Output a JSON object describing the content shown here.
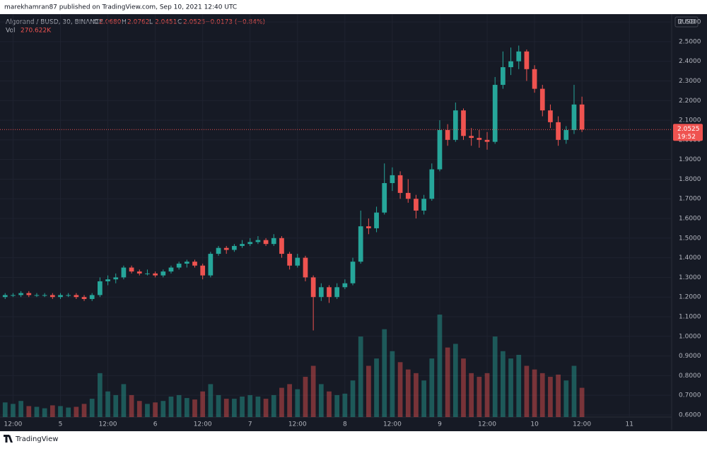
{
  "header": {
    "publisher": "marekhamran87 published on TradingView.com, Sep 10, 2021 12:40 UTC"
  },
  "footer": {
    "brand": "TradingView"
  },
  "chart_data": {
    "type": "candlestick",
    "symbol": "Algorand / BUSD, 30, BINANCE",
    "ohlc_legend": [
      {
        "key": "O",
        "value": "2.0680"
      },
      {
        "key": "H",
        "value": "2.0762"
      },
      {
        "key": "L",
        "value": "2.0451"
      },
      {
        "key": "C",
        "value": "2.0525"
      }
    ],
    "change": "−0.0173 (−0.84%)",
    "volume_label": "Vol",
    "volume_value": "270.622K",
    "currency": "BUSD",
    "last_price": {
      "value": 2.0525,
      "label": "2.0525"
    },
    "countdown": "19:52",
    "up_color": "#26a69a",
    "down_color": "#ef5350",
    "xlim": [
      8.7,
      178.7
    ],
    "ylim": [
      0.589,
      2.64
    ],
    "xticks": [
      {
        "value": 12,
        "label": "12:00"
      },
      {
        "value": 24,
        "label": "5"
      },
      {
        "value": 36,
        "label": "12:00"
      },
      {
        "value": 48,
        "label": "6"
      },
      {
        "value": 60,
        "label": "12:00"
      },
      {
        "value": 72,
        "label": "7"
      },
      {
        "value": 84,
        "label": "12:00"
      },
      {
        "value": 96,
        "label": "8"
      },
      {
        "value": 108,
        "label": "12:00"
      },
      {
        "value": 120,
        "label": "9"
      },
      {
        "value": 132,
        "label": "12:00"
      },
      {
        "value": 144,
        "label": "10"
      },
      {
        "value": 156,
        "label": "12:00"
      },
      {
        "value": 168,
        "label": "11"
      }
    ],
    "yticks": [
      {
        "value": 0.6,
        "label": "0.6000"
      },
      {
        "value": 0.7,
        "label": "0.7000"
      },
      {
        "value": 0.8,
        "label": "0.8000"
      },
      {
        "value": 0.9,
        "label": "0.9000"
      },
      {
        "value": 1.0,
        "label": "1.0000"
      },
      {
        "value": 1.1,
        "label": "1.1000"
      },
      {
        "value": 1.2,
        "label": "1.2000"
      },
      {
        "value": 1.3,
        "label": "1.3000"
      },
      {
        "value": 1.4,
        "label": "1.4000"
      },
      {
        "value": 1.5,
        "label": "1.5000"
      },
      {
        "value": 1.6,
        "label": "1.6000"
      },
      {
        "value": 1.7,
        "label": "1.7000"
      },
      {
        "value": 1.8,
        "label": "1.8000"
      },
      {
        "value": 1.9,
        "label": "1.9000"
      },
      {
        "value": 2.0,
        "label": "2.0000"
      },
      {
        "value": 2.1,
        "label": "2.1000"
      },
      {
        "value": 2.2,
        "label": "2.2000"
      },
      {
        "value": 2.3,
        "label": "2.3000"
      },
      {
        "value": 2.4,
        "label": "2.4000"
      },
      {
        "value": 2.5,
        "label": "2.5000"
      },
      {
        "value": 2.6,
        "label": "2.6000"
      }
    ],
    "x": [
      10,
      12,
      14,
      16,
      18,
      20,
      22,
      24,
      26,
      28,
      30,
      32,
      34,
      36,
      38,
      40,
      42,
      44,
      46,
      48,
      50,
      52,
      54,
      56,
      58,
      60,
      62,
      64,
      66,
      68,
      70,
      72,
      74,
      76,
      78,
      80,
      82,
      84,
      86,
      88,
      90,
      92,
      94,
      96,
      98,
      100,
      102,
      104,
      106,
      108,
      110,
      112,
      114,
      116,
      118,
      120,
      122,
      124,
      126,
      128,
      130,
      132,
      134,
      136,
      138,
      140,
      142,
      144,
      146,
      148,
      150,
      152,
      154,
      156
    ],
    "open": [
      1.2,
      1.21,
      1.21,
      1.22,
      1.21,
      1.21,
      1.21,
      1.2,
      1.21,
      1.21,
      1.2,
      1.19,
      1.21,
      1.28,
      1.29,
      1.3,
      1.35,
      1.33,
      1.32,
      1.32,
      1.31,
      1.33,
      1.35,
      1.37,
      1.38,
      1.36,
      1.31,
      1.42,
      1.45,
      1.44,
      1.46,
      1.47,
      1.48,
      1.49,
      1.47,
      1.5,
      1.42,
      1.36,
      1.4,
      1.3,
      1.2,
      1.25,
      1.2,
      1.25,
      1.27,
      1.38,
      1.56,
      1.55,
      1.63,
      1.78,
      1.82,
      1.73,
      1.7,
      1.64,
      1.7,
      1.85,
      2.05,
      2.0,
      2.15,
      2.02,
      2.01,
      2.0,
      1.99,
      2.28,
      2.37,
      2.4,
      2.45,
      2.36,
      2.26,
      2.15,
      2.09,
      2.0,
      2.05,
      2.18
    ],
    "high": [
      1.22,
      1.22,
      1.23,
      1.23,
      1.22,
      1.22,
      1.22,
      1.22,
      1.22,
      1.22,
      1.21,
      1.22,
      1.3,
      1.31,
      1.32,
      1.36,
      1.36,
      1.34,
      1.34,
      1.33,
      1.34,
      1.36,
      1.38,
      1.39,
      1.39,
      1.37,
      1.43,
      1.46,
      1.46,
      1.47,
      1.49,
      1.5,
      1.51,
      1.5,
      1.52,
      1.51,
      1.43,
      1.42,
      1.41,
      1.31,
      1.27,
      1.26,
      1.27,
      1.29,
      1.4,
      1.64,
      1.6,
      1.66,
      1.88,
      1.86,
      1.84,
      1.8,
      1.72,
      1.72,
      1.88,
      2.1,
      2.08,
      2.19,
      2.16,
      2.06,
      2.05,
      2.04,
      2.32,
      2.45,
      2.47,
      2.48,
      2.46,
      2.38,
      2.28,
      2.18,
      2.12,
      2.07,
      2.28,
      2.22
    ],
    "low": [
      1.19,
      1.2,
      1.2,
      1.2,
      1.2,
      1.2,
      1.19,
      1.19,
      1.2,
      1.19,
      1.18,
      1.18,
      1.2,
      1.26,
      1.27,
      1.29,
      1.32,
      1.31,
      1.31,
      1.3,
      1.3,
      1.32,
      1.34,
      1.35,
      1.35,
      1.29,
      1.3,
      1.41,
      1.42,
      1.43,
      1.45,
      1.46,
      1.47,
      1.46,
      1.46,
      1.4,
      1.34,
      1.35,
      1.28,
      1.03,
      1.18,
      1.17,
      1.19,
      1.24,
      1.26,
      1.37,
      1.52,
      1.53,
      1.62,
      1.74,
      1.7,
      1.68,
      1.6,
      1.62,
      1.69,
      1.84,
      1.97,
      1.99,
      2.0,
      1.97,
      1.96,
      1.95,
      1.98,
      2.26,
      2.33,
      2.36,
      2.3,
      2.24,
      2.12,
      2.06,
      1.97,
      1.98,
      2.03,
      2.04
    ],
    "close": [
      1.21,
      1.21,
      1.22,
      1.21,
      1.21,
      1.21,
      1.2,
      1.21,
      1.21,
      1.2,
      1.19,
      1.21,
      1.28,
      1.29,
      1.3,
      1.35,
      1.33,
      1.32,
      1.32,
      1.31,
      1.33,
      1.35,
      1.37,
      1.38,
      1.36,
      1.31,
      1.42,
      1.45,
      1.44,
      1.46,
      1.47,
      1.48,
      1.49,
      1.47,
      1.5,
      1.42,
      1.36,
      1.4,
      1.3,
      1.2,
      1.25,
      1.2,
      1.25,
      1.27,
      1.38,
      1.56,
      1.55,
      1.63,
      1.78,
      1.82,
      1.73,
      1.7,
      1.64,
      1.7,
      1.85,
      2.05,
      2.0,
      2.15,
      2.02,
      2.01,
      2.0,
      1.99,
      2.28,
      2.37,
      2.4,
      2.45,
      2.36,
      2.26,
      2.15,
      2.09,
      2.0,
      2.05,
      2.18,
      2.0525
    ],
    "volume": [
      20,
      18,
      22,
      15,
      14,
      12,
      16,
      15,
      13,
      14,
      18,
      25,
      60,
      35,
      30,
      45,
      30,
      22,
      18,
      20,
      22,
      28,
      30,
      26,
      24,
      35,
      45,
      30,
      25,
      25,
      28,
      30,
      28,
      25,
      30,
      40,
      45,
      38,
      55,
      70,
      45,
      35,
      30,
      32,
      50,
      110,
      70,
      80,
      120,
      90,
      75,
      65,
      60,
      50,
      80,
      140,
      95,
      100,
      80,
      60,
      55,
      60,
      110,
      90,
      80,
      85,
      70,
      65,
      60,
      55,
      58,
      50,
      70,
      40
    ]
  }
}
